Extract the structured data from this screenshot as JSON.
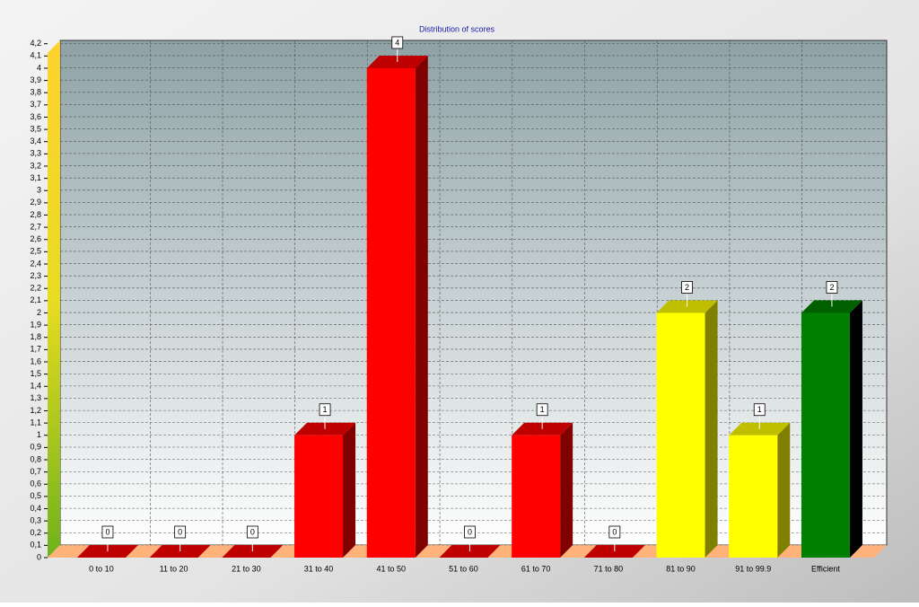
{
  "chart_data": {
    "type": "bar",
    "title": "Distribution of scores",
    "categories": [
      "0 to 10",
      "11 to 20",
      "21 to 30",
      "31 to 40",
      "41 to 50",
      "51 to 60",
      "61 to 70",
      "71 to 80",
      "81 to 90",
      "91 to 99.9",
      "Efficient"
    ],
    "values": [
      0,
      0,
      0,
      1,
      4,
      0,
      1,
      0,
      2,
      1,
      2
    ],
    "colors": [
      "#ff0000",
      "#ff0000",
      "#ff0000",
      "#ff0000",
      "#ff0000",
      "#ff0000",
      "#ff0000",
      "#ff0000",
      "#ffff00",
      "#ffff00",
      "#008000"
    ],
    "ylim": [
      0,
      4.33
    ],
    "yticks": [
      0,
      {
        "value": 0.1,
        "label": "0,1"
      },
      {
        "value": 0.2,
        "label": "0,2"
      },
      {
        "value": 0.3,
        "label": "0,3"
      },
      {
        "value": 0.4,
        "label": "0,4"
      },
      {
        "value": 0.5,
        "label": "0,5"
      },
      {
        "value": 0.6,
        "label": "0,6"
      },
      {
        "value": 0.7,
        "label": "0,7"
      },
      {
        "value": 0.8,
        "label": "0,8"
      },
      {
        "value": 0.9,
        "label": "0,9"
      },
      1,
      {
        "value": 1.1,
        "label": "1,1"
      },
      {
        "value": 1.2,
        "label": "1,2"
      },
      {
        "value": 1.3,
        "label": "1,3"
      },
      {
        "value": 1.4,
        "label": "1,4"
      },
      {
        "value": 1.5,
        "label": "1,5"
      },
      {
        "value": 1.6,
        "label": "1,6"
      },
      {
        "value": 1.7,
        "label": "1,7"
      },
      {
        "value": 1.8,
        "label": "1,8"
      },
      {
        "value": 1.9,
        "label": "1,9"
      },
      2,
      {
        "value": 2.1,
        "label": "2,1"
      },
      {
        "value": 2.2,
        "label": "2,2"
      },
      {
        "value": 2.3,
        "label": "2,3"
      },
      {
        "value": 2.4,
        "label": "2,4"
      },
      {
        "value": 2.5,
        "label": "2,5"
      },
      {
        "value": 2.6,
        "label": "2,6"
      },
      {
        "value": 2.7,
        "label": "2,7"
      },
      {
        "value": 2.8,
        "label": "2,8"
      },
      {
        "value": 2.9,
        "label": "2,9"
      },
      3,
      {
        "value": 3.1,
        "label": "3,1"
      },
      {
        "value": 3.2,
        "label": "3,2"
      },
      {
        "value": 3.3,
        "label": "3,3"
      },
      {
        "value": 3.4,
        "label": "3,4"
      },
      {
        "value": 3.5,
        "label": "3,5"
      },
      {
        "value": 3.6,
        "label": "3,6"
      },
      {
        "value": 3.7,
        "label": "3,7"
      },
      {
        "value": 3.8,
        "label": "3,8"
      },
      {
        "value": 3.9,
        "label": "3,9"
      },
      4,
      {
        "value": 4.1,
        "label": "4,1"
      },
      {
        "value": 4.2,
        "label": "4,2"
      }
    ],
    "grid": true
  }
}
